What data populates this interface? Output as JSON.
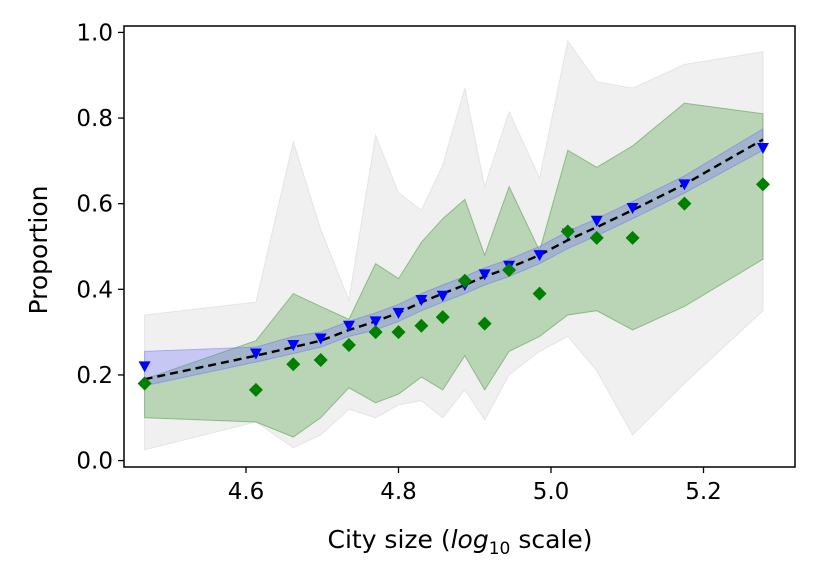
{
  "chart_data": {
    "type": "scatter",
    "title": "",
    "xlabel_prefix": "City size (",
    "xlabel_math": "log",
    "xlabel_sub": "10",
    "xlabel_suffix": " scale)",
    "ylabel": "Proportion",
    "xlim": [
      4.44,
      5.32
    ],
    "ylim": [
      -0.015,
      1.015
    ],
    "xticks": [
      4.6,
      4.8,
      5.0,
      5.2
    ],
    "xtick_labels": [
      "4.6",
      "4.8",
      "5.0",
      "5.2"
    ],
    "yticks": [
      0.0,
      0.2,
      0.4,
      0.6,
      0.8,
      1.0
    ],
    "ytick_labels": [
      "0.0",
      "0.2",
      "0.4",
      "0.6",
      "0.8",
      "1.0"
    ],
    "grid": false,
    "x": [
      4.467,
      4.613,
      4.662,
      4.698,
      4.735,
      4.77,
      4.8,
      4.83,
      4.858,
      4.887,
      4.913,
      4.945,
      4.985,
      5.022,
      5.06,
      5.107,
      5.175,
      5.278
    ],
    "series": [
      {
        "name": "blue triangles",
        "marker": "triangle-down",
        "color": "#0000ff",
        "values": [
          0.22,
          0.25,
          0.27,
          0.285,
          0.315,
          0.325,
          0.345,
          0.375,
          0.385,
          0.41,
          0.435,
          0.455,
          0.48,
          0.53,
          0.56,
          0.59,
          0.645,
          0.73
        ]
      },
      {
        "name": "green diamonds",
        "marker": "diamond",
        "color": "#008000",
        "values": [
          0.18,
          0.165,
          0.225,
          0.235,
          0.27,
          0.3,
          0.3,
          0.315,
          0.335,
          0.42,
          0.32,
          0.445,
          0.39,
          0.535,
          0.52,
          0.52,
          0.6,
          0.645
        ]
      },
      {
        "name": "dashed fit line",
        "line": "dashed",
        "color": "#000000",
        "values": [
          0.19,
          0.245,
          0.265,
          0.28,
          0.305,
          0.325,
          0.345,
          0.37,
          0.39,
          0.41,
          0.43,
          0.45,
          0.48,
          0.515,
          0.545,
          0.585,
          0.645,
          0.75
        ]
      }
    ],
    "bands": [
      {
        "name": "gray band",
        "color": "#d3d3d3",
        "opacity": 0.35,
        "lower": [
          0.025,
          0.09,
          0.03,
          0.06,
          0.12,
          0.1,
          0.13,
          0.14,
          0.1,
          0.165,
          0.095,
          0.2,
          0.255,
          0.29,
          0.21,
          0.06,
          0.18,
          0.35
        ],
        "upper": [
          0.34,
          0.37,
          0.745,
          0.54,
          0.375,
          0.76,
          0.625,
          0.585,
          0.69,
          0.87,
          0.64,
          0.815,
          0.66,
          0.98,
          0.885,
          0.87,
          0.925,
          0.955
        ]
      },
      {
        "name": "green band",
        "color": "#2e8b22",
        "opacity": 0.28,
        "lower": [
          0.1,
          0.09,
          0.055,
          0.1,
          0.17,
          0.135,
          0.155,
          0.195,
          0.165,
          0.245,
          0.165,
          0.255,
          0.29,
          0.34,
          0.35,
          0.305,
          0.36,
          0.47
        ],
        "upper": [
          0.19,
          0.28,
          0.39,
          0.36,
          0.33,
          0.46,
          0.425,
          0.51,
          0.565,
          0.61,
          0.48,
          0.64,
          0.49,
          0.725,
          0.685,
          0.735,
          0.835,
          0.81
        ]
      },
      {
        "name": "blue band",
        "color": "#6a6aff",
        "opacity": 0.3,
        "lower": [
          0.175,
          0.23,
          0.25,
          0.265,
          0.29,
          0.305,
          0.325,
          0.35,
          0.37,
          0.39,
          0.41,
          0.43,
          0.46,
          0.495,
          0.525,
          0.565,
          0.625,
          0.725
        ],
        "upper": [
          0.255,
          0.265,
          0.29,
          0.3,
          0.325,
          0.345,
          0.365,
          0.39,
          0.41,
          0.43,
          0.45,
          0.47,
          0.5,
          0.535,
          0.565,
          0.605,
          0.665,
          0.775
        ]
      }
    ]
  }
}
